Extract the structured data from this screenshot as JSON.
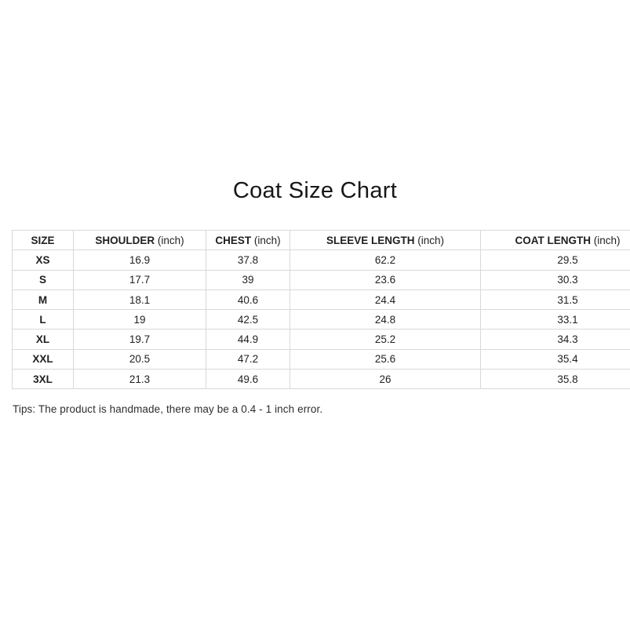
{
  "page": {
    "title": "Coat Size Chart",
    "tips": "Tips: The product is handmade, there may be a 0.4 - 1 inch error."
  },
  "colors": {
    "background": "#ffffff",
    "table_border": "#d9d9d9",
    "table_text": "#1f1f1f",
    "title_text": "#171717",
    "tips_text": "#2e2e2e"
  },
  "chart_data": {
    "type": "table",
    "title": "Coat Size Chart",
    "columns": [
      {
        "name": "SIZE",
        "unit": ""
      },
      {
        "name": "SHOULDER",
        "unit": "(inch)"
      },
      {
        "name": "CHEST",
        "unit": "(inch)"
      },
      {
        "name": "SLEEVE LENGTH",
        "unit": "(inch)"
      },
      {
        "name": "COAT LENGTH",
        "unit": "(inch)"
      }
    ],
    "rows": [
      {
        "size": "XS",
        "shoulder": "16.9",
        "chest": "37.8",
        "sleeve_length": "62.2",
        "coat_length": "29.5"
      },
      {
        "size": "S",
        "shoulder": "17.7",
        "chest": "39",
        "sleeve_length": "23.6",
        "coat_length": "30.3"
      },
      {
        "size": "M",
        "shoulder": "18.1",
        "chest": "40.6",
        "sleeve_length": "24.4",
        "coat_length": "31.5"
      },
      {
        "size": "L",
        "shoulder": "19",
        "chest": "42.5",
        "sleeve_length": "24.8",
        "coat_length": "33.1"
      },
      {
        "size": "XL",
        "shoulder": "19.7",
        "chest": "44.9",
        "sleeve_length": "25.2",
        "coat_length": "34.3"
      },
      {
        "size": "XXL",
        "shoulder": "20.5",
        "chest": "47.2",
        "sleeve_length": "25.6",
        "coat_length": "35.4"
      },
      {
        "size": "3XL",
        "shoulder": "21.3",
        "chest": "49.6",
        "sleeve_length": "26",
        "coat_length": "35.8"
      }
    ],
    "row_field_order": [
      "size",
      "shoulder",
      "chest",
      "sleeve_length",
      "coat_length"
    ],
    "note": "Tips: The product is handmade, there may be a 0.4 - 1 inch error."
  }
}
